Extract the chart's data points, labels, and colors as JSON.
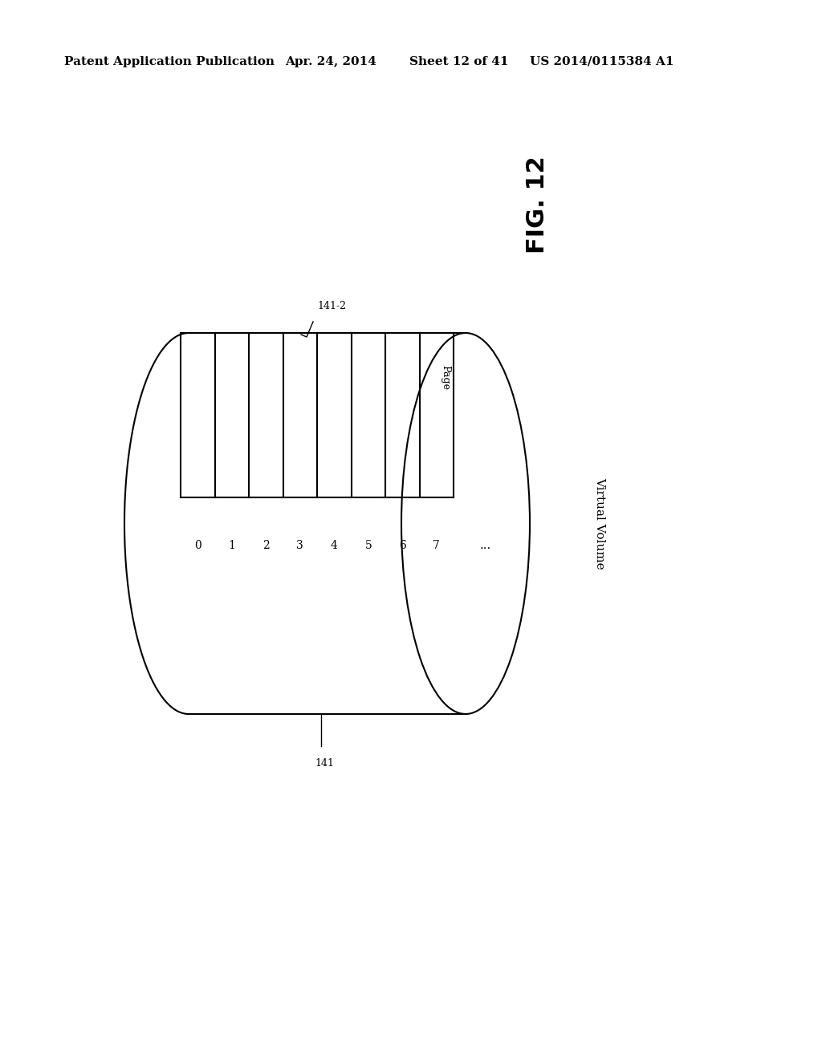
{
  "bg_color": "#ffffff",
  "line_color": "#000000",
  "header_text": "Patent Application Publication",
  "header_date": "Apr. 24, 2014",
  "header_sheet": "Sheet 12 of 41",
  "header_patent": "US 2014/0115384 A1",
  "fig_label": "FIG. 12",
  "label_141_2": "141-2",
  "label_141": "141",
  "page_labels": [
    "0",
    "1",
    "2",
    "3",
    "4",
    "5",
    "6",
    "7"
  ],
  "dots_label": "...",
  "page_axis_label": "Page",
  "virtual_volume_label": "Virtual Volume",
  "num_pages": 8
}
